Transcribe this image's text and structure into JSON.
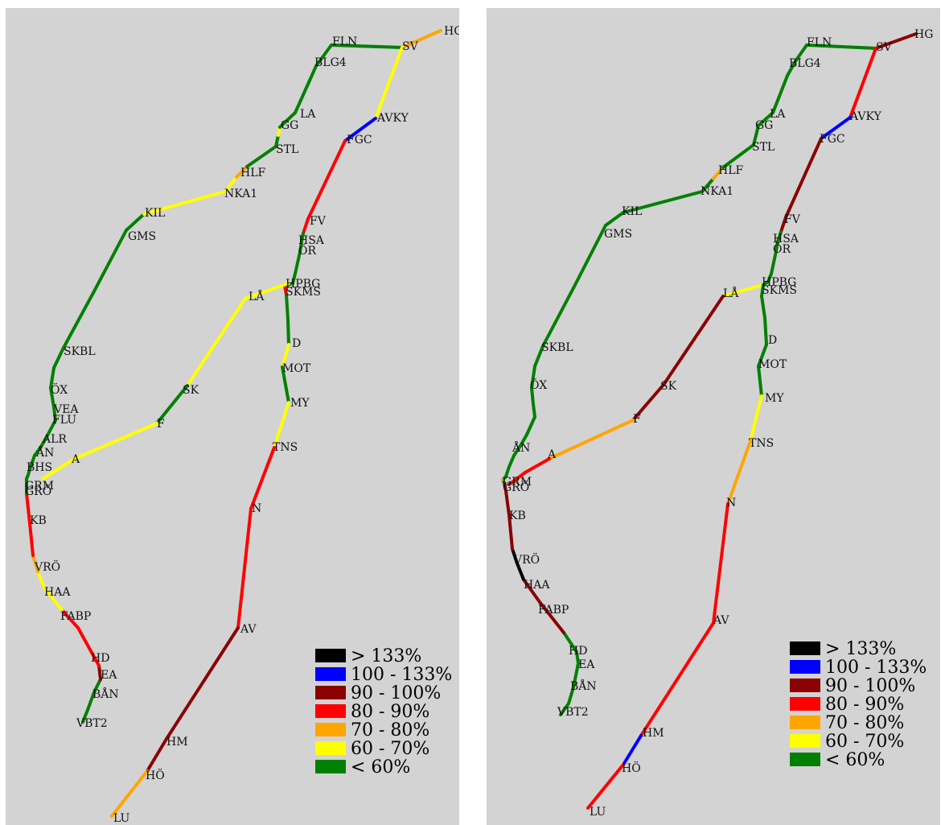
{
  "colors": {
    "black": "#000000",
    "blue": "#0000ff",
    "darkred": "#8b0000",
    "red": "#ff0000",
    "orange": "#ffa500",
    "yellow": "#ffff00",
    "green": "#008000"
  },
  "legend": [
    {
      "key": "black",
      "label": "> 133%"
    },
    {
      "key": "blue",
      "label": "100 - 133%"
    },
    {
      "key": "darkred",
      "label": "90 - 100%"
    },
    {
      "key": "red",
      "label": "80 - 90%"
    },
    {
      "key": "orange",
      "label": "70 - 80%"
    },
    {
      "key": "yellow",
      "label": "60 - 70%"
    },
    {
      "key": "green",
      "label": "< 60%"
    }
  ],
  "maps": [
    {
      "id": "left",
      "segments": [
        [
          "green",
          "green",
          "green",
          "darkred",
          "red",
          "red",
          "red",
          "yellow",
          "yellow",
          "orange",
          "red",
          "red",
          "green",
          "green",
          "green",
          "green",
          "green",
          "green",
          "green",
          "green",
          "green",
          "green",
          "green",
          "green",
          "green",
          "green",
          "green",
          "yellow",
          "yellow",
          "orange",
          "green",
          "green",
          "yellow",
          "green",
          "green",
          "green",
          "green",
          "green",
          "green"
        ],
        [
          "orange",
          "yellow",
          "blue",
          "red",
          "red",
          "green",
          "green",
          "green",
          "green",
          "green",
          "red",
          "green",
          "green",
          "yellow",
          "green",
          "yellow",
          "red",
          "red",
          "darkred",
          "darkred",
          "orange",
          "darkred"
        ],
        [
          "yellow",
          "yellow",
          "green",
          "yellow",
          "yellow",
          "red"
        ]
      ]
    },
    {
      "id": "right",
      "segments": [
        [
          "green",
          "green",
          "green",
          "green",
          "green",
          "darkred",
          "darkred",
          "black",
          "black",
          "darkred",
          "darkred",
          "darkred",
          "green",
          "orange",
          "green",
          "green",
          "green",
          "green",
          "green",
          "green",
          "green",
          "green",
          "green",
          "green",
          "green",
          "green",
          "green",
          "green",
          "green",
          "orange",
          "green",
          "green",
          "green",
          "green",
          "green",
          "green",
          "green",
          "green",
          "green"
        ],
        [
          "darkred",
          "red",
          "blue",
          "darkred",
          "darkred",
          "green",
          "green",
          "green",
          "green",
          "green",
          "green",
          "green",
          "green",
          "green",
          "green",
          "yellow",
          "orange",
          "red",
          "red",
          "blue",
          "red",
          "red",
          "blue"
        ],
        [
          "yellow",
          "darkred",
          "darkred",
          "orange",
          "red",
          "red",
          "darkred"
        ]
      ]
    }
  ],
  "stations": {
    "left": [
      "HG",
      "FLN",
      "SV",
      "BLG4",
      "LA",
      "AVKY",
      "GG",
      "FGC",
      "STL",
      "HLF",
      "NKA1",
      "KIL",
      "FV",
      "GMS",
      "HSA",
      "ÖR",
      "HPBG",
      "SKMS",
      "LÅ",
      "D",
      "SKBL",
      "MOT",
      "SK",
      "ÖX",
      "MY",
      "VEA",
      "FLU",
      "F",
      "ALR",
      "TNS",
      "ÅN",
      "A",
      "BHS",
      "GRM",
      "GRÖ",
      "KB",
      "N",
      "VRÖ",
      "HAA",
      "FABP",
      "AV",
      "HD",
      "EA",
      "BÅN",
      "VBT2",
      "HM",
      "HÖ",
      "LU"
    ],
    "right": [
      "HG",
      "FLN",
      "SV",
      "BLG4",
      "LA",
      "AVKY",
      "GG",
      "FGC",
      "STL",
      "HLF",
      "NKA1",
      "KIL",
      "FV",
      "GMS",
      "HSA",
      "ÖR",
      "HPBG",
      "SKMS",
      "LÅ",
      "D",
      "SKBL",
      "MOT",
      "SK",
      "ÖX",
      "MY",
      "F",
      "TNS",
      "ÅN",
      "A",
      "GRM",
      "GRÖ",
      "KB",
      "N",
      "VRÖ",
      "HAA",
      "FABP",
      "AV",
      "HD",
      "EA",
      "BÅN",
      "VBT2",
      "HM",
      "HÖ",
      "LU"
    ]
  }
}
